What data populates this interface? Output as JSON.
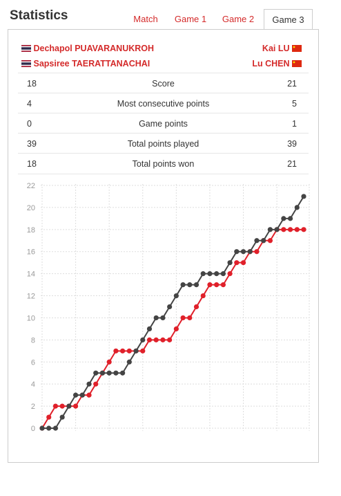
{
  "header": {
    "title": "Statistics"
  },
  "tabs": [
    {
      "label": "Match",
      "active": false
    },
    {
      "label": "Game 1",
      "active": false
    },
    {
      "label": "Game 2",
      "active": false
    },
    {
      "label": "Game 3",
      "active": true
    }
  ],
  "players": {
    "left": [
      {
        "name": "Dechapol PUAVARANUKROH",
        "flag": "thailand-flag"
      },
      {
        "name": "Sapsiree TAERATTANACHAI",
        "flag": "thailand-flag"
      }
    ],
    "right": [
      {
        "name": "Kai LU",
        "flag": "china-flag"
      },
      {
        "name": "Lu CHEN",
        "flag": "china-flag"
      }
    ]
  },
  "stats": [
    {
      "left": "18",
      "label": "Score",
      "right": "21"
    },
    {
      "left": "4",
      "label": "Most consecutive points",
      "right": "5"
    },
    {
      "left": "0",
      "label": "Game points",
      "right": "1"
    },
    {
      "left": "39",
      "label": "Total points played",
      "right": "39"
    },
    {
      "left": "18",
      "label": "Total points won",
      "right": "21"
    }
  ],
  "colors": {
    "accent": "#d42a2a",
    "dark_series": "#444444",
    "red_series": "#e0202a",
    "grid": "#dddddd"
  },
  "chart_data": {
    "type": "line",
    "x": [
      0,
      1,
      2,
      3,
      4,
      5,
      6,
      7,
      8,
      9,
      10,
      11,
      12,
      13,
      14,
      15,
      16,
      17,
      18,
      19,
      20,
      21,
      22,
      23,
      24,
      25,
      26,
      27,
      28,
      29,
      30,
      31,
      32,
      33,
      34,
      35,
      36,
      37,
      38,
      39
    ],
    "ylim": [
      0,
      22
    ],
    "yticks": [
      "0",
      "2",
      "4",
      "6",
      "8",
      "10",
      "12",
      "14",
      "16",
      "18",
      "20",
      "22"
    ],
    "grid": true,
    "series": [
      {
        "color": "#e0202a",
        "values": [
          0,
          1,
          2,
          2,
          2,
          2,
          3,
          3,
          4,
          5,
          6,
          7,
          7,
          7,
          7,
          7,
          8,
          8,
          8,
          8,
          9,
          10,
          10,
          11,
          12,
          13,
          13,
          13,
          14,
          15,
          15,
          16,
          16,
          17,
          17,
          18,
          18,
          18,
          18,
          18
        ]
      },
      {
        "color": "#444444",
        "values": [
          0,
          0,
          0,
          1,
          2,
          3,
          3,
          4,
          5,
          5,
          5,
          5,
          5,
          6,
          7,
          8,
          9,
          10,
          10,
          11,
          12,
          13,
          13,
          13,
          14,
          14,
          14,
          14,
          15,
          16,
          16,
          16,
          17,
          17,
          18,
          18,
          19,
          19,
          20,
          21
        ]
      }
    ]
  }
}
